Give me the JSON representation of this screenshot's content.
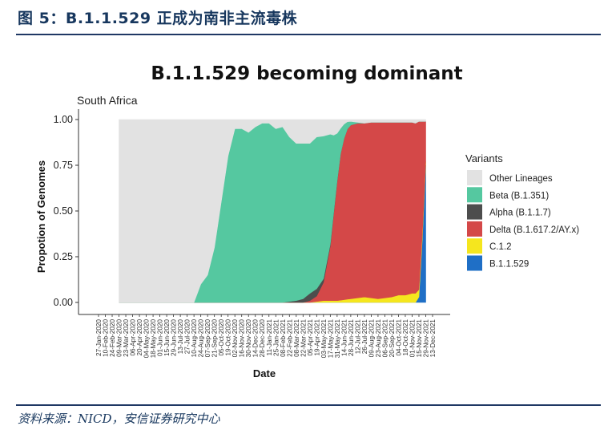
{
  "caption": "图 5：B.1.1.529 正成为南非主流毒株",
  "source": "资料来源：NICD，安信证券研究中心",
  "colors": {
    "other": "#e2e2e2",
    "beta": "#55c8a0",
    "alpha": "#4d4d4d",
    "delta": "#d44848",
    "c12": "#f5e61e",
    "omicron": "#1f6fc6",
    "caption": "#17375e"
  },
  "chart_data": {
    "type": "area",
    "title": "B.1.1.529 becoming dominant",
    "subtitle": "South Africa",
    "xlabel": "Date",
    "ylabel": "Propotion of Genomes",
    "ylim": [
      0,
      1
    ],
    "yticks": [
      "0.00",
      "0.25",
      "0.50",
      "0.75",
      "1.00"
    ],
    "xticks": [
      "27-Jan-2020",
      "10-Feb-2020",
      "24-Feb-2020",
      "09-Mar-2020",
      "23-Mar-2020",
      "06-Apr-2020",
      "20-Apr-2020",
      "04-May-2020",
      "18-May-2020",
      "01-Jun-2020",
      "15-Jun-2020",
      "29-Jun-2020",
      "13-Jul-2020",
      "27-Jul-2020",
      "10-Aug-2020",
      "24-Aug-2020",
      "07-Sep-2020",
      "21-Sep-2020",
      "05-Oct-2020",
      "19-Oct-2020",
      "02-Nov-2020",
      "16-Nov-2020",
      "30-Nov-2020",
      "14-Dec-2020",
      "28-Dec-2020",
      "11-Jan-2021",
      "25-Jan-2021",
      "08-Feb-2021",
      "22-Feb-2021",
      "08-Mar-2021",
      "22-Mar-2021",
      "05-Apr-2021",
      "19-Apr-2021",
      "03-May-2021",
      "17-May-2021",
      "31-May-2021",
      "14-Jun-2021",
      "28-Jun-2021",
      "12-Jul-2021",
      "26-Jul-2021",
      "09-Aug-2021",
      "23-Aug-2021",
      "06-Sep-2021",
      "20-Sep-2021",
      "04-Oct-2021",
      "18-Oct-2021",
      "01-Nov-2021",
      "15-Nov-2021",
      "29-Nov-2021",
      "13-Dec-2021"
    ],
    "legend": {
      "title": "Variants",
      "position": "right"
    },
    "x": [
      "09-Mar-2020",
      "06-Apr-2020",
      "04-May-2020",
      "01-Jun-2020",
      "29-Jun-2020",
      "27-Jul-2020",
      "10-Aug-2020",
      "17-Aug-2020",
      "24-Aug-2020",
      "07-Sep-2020",
      "21-Sep-2020",
      "05-Oct-2020",
      "19-Oct-2020",
      "02-Nov-2020",
      "16-Nov-2020",
      "30-Nov-2020",
      "14-Dec-2020",
      "28-Dec-2020",
      "11-Jan-2021",
      "25-Jan-2021",
      "08-Feb-2021",
      "22-Feb-2021",
      "08-Mar-2021",
      "22-Mar-2021",
      "05-Apr-2021",
      "19-Apr-2021",
      "03-May-2021",
      "17-May-2021",
      "24-May-2021",
      "31-May-2021",
      "07-Jun-2021",
      "14-Jun-2021",
      "21-Jun-2021",
      "28-Jun-2021",
      "12-Jul-2021",
      "26-Jul-2021",
      "09-Aug-2021",
      "23-Aug-2021",
      "06-Sep-2021",
      "20-Sep-2021",
      "04-Oct-2021",
      "18-Oct-2021",
      "01-Nov-2021",
      "08-Nov-2021",
      "15-Nov-2021",
      "22-Nov-2021",
      "29-Nov-2021"
    ],
    "series": [
      {
        "name": "Omicron",
        "label": "B.1.1.529",
        "key": "omicron",
        "values": [
          0,
          0,
          0,
          0,
          0,
          0,
          0,
          0,
          0,
          0,
          0,
          0,
          0,
          0,
          0,
          0,
          0,
          0,
          0,
          0,
          0,
          0,
          0,
          0,
          0,
          0,
          0,
          0,
          0,
          0,
          0,
          0,
          0,
          0,
          0,
          0,
          0,
          0,
          0,
          0,
          0,
          0,
          0,
          0,
          0.03,
          0.35,
          0.75
        ]
      },
      {
        "name": "C.1.2",
        "label": "C.1.2",
        "key": "c12",
        "values": [
          0,
          0,
          0,
          0,
          0,
          0,
          0,
          0,
          0,
          0,
          0,
          0,
          0,
          0,
          0,
          0,
          0,
          0,
          0,
          0,
          0,
          0,
          0,
          0,
          0,
          0.005,
          0.01,
          0.01,
          0.01,
          0.01,
          0.012,
          0.015,
          0.018,
          0.02,
          0.025,
          0.03,
          0.025,
          0.02,
          0.025,
          0.03,
          0.04,
          0.04,
          0.05,
          0.05,
          0.04,
          0.03,
          0.02
        ]
      },
      {
        "name": "Delta",
        "label": "Delta (B.1.617.2/AY.x)",
        "key": "delta",
        "values": [
          0,
          0,
          0,
          0,
          0,
          0,
          0,
          0,
          0,
          0,
          0,
          0,
          0,
          0,
          0,
          0,
          0,
          0,
          0,
          0,
          0,
          0,
          0,
          0,
          0.01,
          0.03,
          0.1,
          0.3,
          0.48,
          0.65,
          0.8,
          0.88,
          0.93,
          0.95,
          0.955,
          0.95,
          0.96,
          0.965,
          0.96,
          0.955,
          0.945,
          0.945,
          0.935,
          0.93,
          0.92,
          0.61,
          0.22
        ]
      },
      {
        "name": "Alpha",
        "label": "Alpha (B.1.1.7)",
        "key": "alpha",
        "values": [
          0,
          0,
          0,
          0,
          0,
          0,
          0,
          0,
          0,
          0,
          0,
          0,
          0,
          0,
          0,
          0,
          0,
          0,
          0,
          0,
          0,
          0.005,
          0.01,
          0.02,
          0.04,
          0.04,
          0.02,
          0.01,
          0.005,
          0.005,
          0,
          0,
          0,
          0,
          0,
          0,
          0,
          0,
          0,
          0,
          0,
          0,
          0,
          0,
          0,
          0,
          0
        ]
      },
      {
        "name": "Beta",
        "label": "Beta (B.1.351)",
        "key": "beta",
        "values": [
          0,
          0,
          0,
          0,
          0,
          0,
          0,
          0.05,
          0.1,
          0.15,
          0.3,
          0.55,
          0.8,
          0.95,
          0.95,
          0.93,
          0.96,
          0.98,
          0.98,
          0.95,
          0.96,
          0.9,
          0.86,
          0.85,
          0.82,
          0.83,
          0.78,
          0.6,
          0.42,
          0.26,
          0.14,
          0.08,
          0.04,
          0.02,
          0.005,
          0,
          0,
          0,
          0,
          0,
          0,
          0,
          0,
          0,
          0,
          0,
          0
        ]
      },
      {
        "name": "Other Lineages",
        "label": "Other Lineages",
        "key": "other",
        "values": [
          1,
          1,
          1,
          1,
          1,
          1,
          1,
          0.95,
          0.9,
          0.85,
          0.7,
          0.45,
          0.2,
          0.05,
          0.05,
          0.07,
          0.04,
          0.02,
          0.02,
          0.05,
          0.04,
          0.095,
          0.13,
          0.13,
          0.13,
          0.095,
          0.09,
          0.08,
          0.085,
          0.075,
          0.048,
          0.025,
          0.012,
          0.01,
          0.015,
          0.02,
          0.015,
          0.015,
          0.015,
          0.015,
          0.015,
          0.015,
          0.015,
          0.02,
          0.01,
          0.01,
          0.01
        ]
      }
    ],
    "legend_order": [
      "other",
      "beta",
      "alpha",
      "delta",
      "c12",
      "omicron"
    ]
  }
}
